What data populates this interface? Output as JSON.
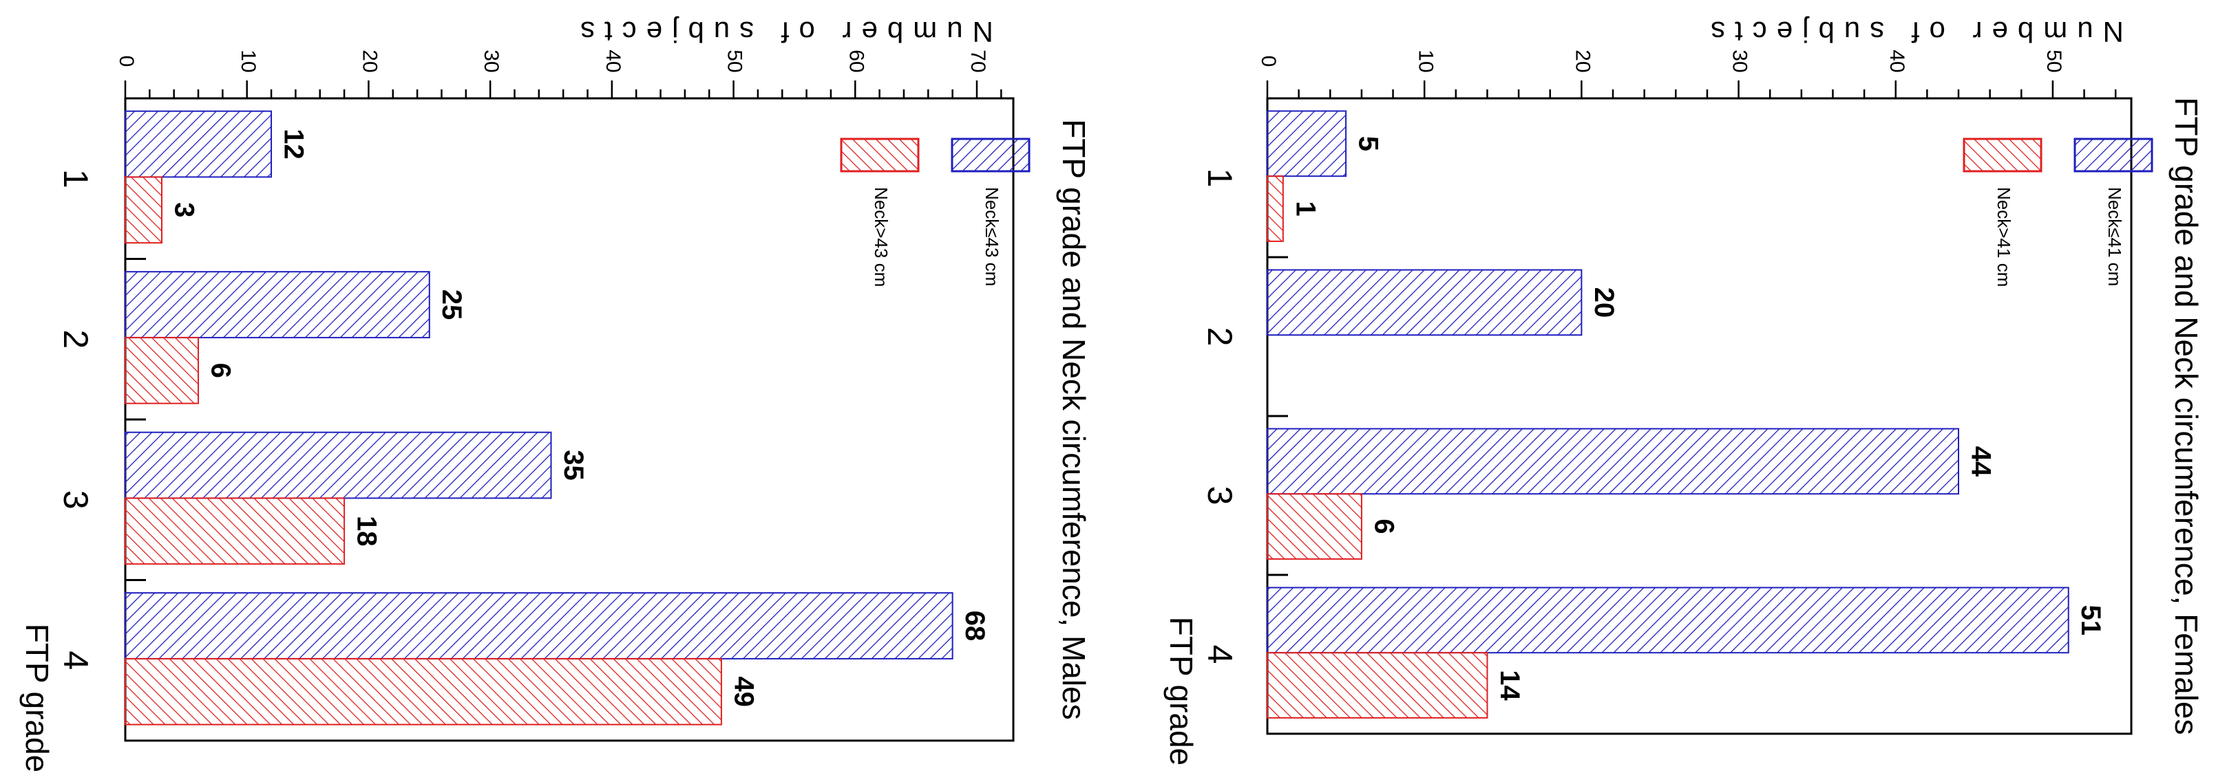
{
  "chart_data": [
    {
      "type": "bar",
      "title": "FTP grade and Neck circumference, Males",
      "xlabel": "FTP grade",
      "ylabel": "Number of subjects",
      "categories": [
        "1",
        "2",
        "3",
        "4"
      ],
      "series": [
        {
          "name": "Neck≤43 cm",
          "values": [
            12,
            25,
            35,
            68
          ],
          "color": "#1f1fbf",
          "hatch": "blue"
        },
        {
          "name": "Neck>43 cm",
          "values": [
            3,
            6,
            18,
            49
          ],
          "color": "#e02020",
          "hatch": "red"
        }
      ],
      "ylim": [
        0,
        73
      ],
      "yticks": [
        0,
        10,
        20,
        30,
        40,
        50,
        60,
        70
      ],
      "ytick_labels": [
        "0",
        "10",
        "20",
        "30",
        "40",
        "50",
        "60",
        "70"
      ],
      "orientation": "rotated-90-clockwise",
      "legend": "top-right"
    },
    {
      "type": "bar",
      "title": "FTP grade and Neck circumference, Females",
      "xlabel": "FTP grade",
      "ylabel": "Number of subjects",
      "categories": [
        "1",
        "2",
        "3",
        "4"
      ],
      "series": [
        {
          "name": "Neck≤41 cm",
          "values": [
            5,
            20,
            44,
            51
          ],
          "color": "#1f1fbf",
          "hatch": "blue"
        },
        {
          "name": "Neck>41 cm",
          "values": [
            1,
            0,
            6,
            14
          ],
          "color": "#e02020",
          "hatch": "red"
        }
      ],
      "ylim": [
        0,
        55
      ],
      "yticks": [
        0,
        10,
        20,
        30,
        40,
        50
      ],
      "ytick_labels": [
        "0",
        "10",
        "20",
        "30",
        "40",
        "50"
      ],
      "orientation": "rotated-90-clockwise",
      "legend": "top-right"
    }
  ]
}
